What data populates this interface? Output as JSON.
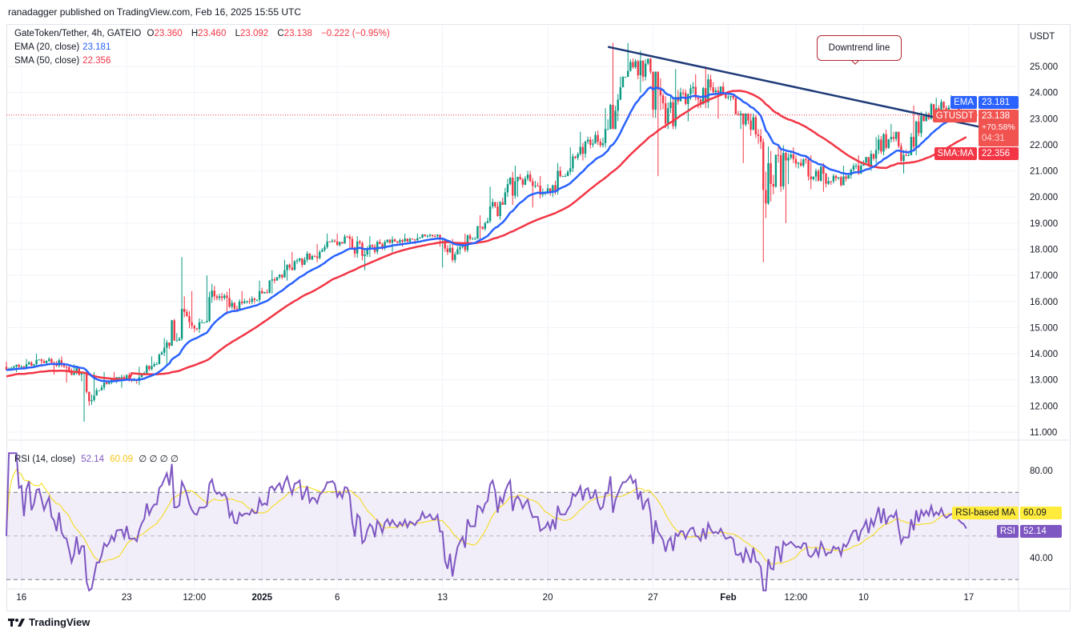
{
  "header": {
    "published": "ranadagger published on TradingView.com, Feb 16, 2025 15:55 UTC"
  },
  "legend": {
    "symbol": "GateToken/Tether, 4h, GATEIO",
    "o_label": "O",
    "o": "23.360",
    "h_label": "H",
    "h": "23.460",
    "l_label": "L",
    "l": "23.092",
    "c_label": "C",
    "c": "23.138",
    "change": "−0.222 (−0.95%)",
    "ema_label": "EMA (20, close)",
    "ema_value": "23.181",
    "sma_label": "SMA (50, close)",
    "sma_value": "22.356",
    "rsi_label": "RSI (14, close)",
    "rsi_value": "52.14",
    "rsi_ma_value": "60.09",
    "rsi_extra": "∅ ∅ ∅ ∅"
  },
  "price_axis": {
    "currency": "USDT",
    "ticks": [
      "25.000",
      "24.000",
      "23.000",
      "22.000",
      "21.000",
      "20.000",
      "19.000",
      "18.000",
      "17.000",
      "16.000",
      "15.000",
      "14.000",
      "13.000",
      "12.000",
      "11.000"
    ]
  },
  "rsi_axis": {
    "ticks": [
      "80.00",
      "40.00"
    ]
  },
  "time_axis": {
    "ticks": [
      {
        "label": "16",
        "date": "2024-12-16"
      },
      {
        "label": "23",
        "date": "2024-12-23"
      },
      {
        "label": "12:00",
        "date": "2024-12-27T12:00"
      },
      {
        "label": "2025",
        "date": "2025-01-01"
      },
      {
        "label": "6",
        "date": "2025-01-06"
      },
      {
        "label": "13",
        "date": "2025-01-13"
      },
      {
        "label": "20",
        "date": "2025-01-20"
      },
      {
        "label": "27",
        "date": "2025-01-27"
      },
      {
        "label": "Feb",
        "date": "2025-02-01"
      },
      {
        "label": "12:00",
        "date": "2025-02-05T12:00"
      },
      {
        "label": "10",
        "date": "2025-02-10"
      },
      {
        "label": "17",
        "date": "2025-02-17"
      }
    ]
  },
  "tags": {
    "ema_name": "EMA",
    "ema_value": "23.181",
    "symbol_name": "GTUSDT",
    "last_price": "23.138",
    "pct": "+70.58%",
    "countdown": "04:31",
    "sma_name": "SMA:MA",
    "sma_value": "22.356",
    "rsi_ma_name": "RSI-based MA",
    "rsi_ma_value": "60.09",
    "rsi_name": "RSI",
    "rsi_value": "52.14"
  },
  "annotation": {
    "text": "Downtrend line"
  },
  "footer": {
    "brand": "TradingView"
  },
  "colors": {
    "up": "#089981",
    "down": "#f23645",
    "ema": "#2962ff",
    "sma": "#f23645",
    "trend": "#1e3a78",
    "rsi": "#7e57c2",
    "rsi_ma": "#f5d90a",
    "rsi_band": "#7e57c2"
  },
  "chart_data": {
    "type": "candlestick",
    "interval": "4h",
    "symbol": "GTUSDT",
    "ylim": [
      10.6,
      26.2
    ],
    "rsi_ylim": [
      20,
      90
    ],
    "rsi_levels": [
      70,
      50,
      30
    ],
    "start_date": "2024-12-15",
    "daily": [
      {
        "d": "2024-12-15",
        "c": 13.5,
        "h": 13.7,
        "l": 13.3
      },
      {
        "d": "2024-12-16",
        "c": 13.6,
        "h": 13.8,
        "l": 13.4
      },
      {
        "d": "2024-12-17",
        "c": 13.8,
        "h": 14.0,
        "l": 13.5
      },
      {
        "d": "2024-12-18",
        "c": 13.5,
        "h": 13.9,
        "l": 13.2
      },
      {
        "d": "2024-12-19",
        "c": 13.2,
        "h": 13.6,
        "l": 12.9
      },
      {
        "d": "2024-12-20",
        "c": 12.4,
        "h": 13.3,
        "l": 11.4
      },
      {
        "d": "2024-12-21",
        "c": 12.9,
        "h": 13.3,
        "l": 12.6
      },
      {
        "d": "2024-12-22",
        "c": 13.0,
        "h": 13.3,
        "l": 12.7
      },
      {
        "d": "2024-12-23",
        "c": 13.1,
        "h": 13.5,
        "l": 12.8
      },
      {
        "d": "2024-12-24",
        "c": 13.6,
        "h": 13.9,
        "l": 13.2
      },
      {
        "d": "2024-12-25",
        "c": 14.3,
        "h": 14.6,
        "l": 13.6
      },
      {
        "d": "2024-12-26",
        "c": 15.6,
        "h": 17.7,
        "l": 14.5
      },
      {
        "d": "2024-12-27",
        "c": 15.2,
        "h": 16.4,
        "l": 14.8
      },
      {
        "d": "2024-12-28",
        "c": 16.2,
        "h": 17.0,
        "l": 15.2
      },
      {
        "d": "2024-12-29",
        "c": 15.8,
        "h": 16.5,
        "l": 15.5
      },
      {
        "d": "2024-12-30",
        "c": 16.0,
        "h": 16.4,
        "l": 15.6
      },
      {
        "d": "2024-12-31",
        "c": 16.4,
        "h": 16.8,
        "l": 15.9
      },
      {
        "d": "2025-01-01",
        "c": 16.8,
        "h": 17.2,
        "l": 16.3
      },
      {
        "d": "2025-01-02",
        "c": 17.3,
        "h": 17.6,
        "l": 16.8
      },
      {
        "d": "2025-01-03",
        "c": 17.6,
        "h": 17.9,
        "l": 17.2
      },
      {
        "d": "2025-01-04",
        "c": 17.9,
        "h": 18.2,
        "l": 17.5
      },
      {
        "d": "2025-01-05",
        "c": 18.3,
        "h": 18.6,
        "l": 17.9
      },
      {
        "d": "2025-01-06",
        "c": 18.4,
        "h": 18.6,
        "l": 18.0
      },
      {
        "d": "2025-01-07",
        "c": 17.8,
        "h": 18.5,
        "l": 17.2
      },
      {
        "d": "2025-01-08",
        "c": 18.2,
        "h": 18.5,
        "l": 17.7
      },
      {
        "d": "2025-01-09",
        "c": 18.3,
        "h": 18.5,
        "l": 17.9
      },
      {
        "d": "2025-01-10",
        "c": 18.4,
        "h": 18.6,
        "l": 18.1
      },
      {
        "d": "2025-01-11",
        "c": 18.5,
        "h": 18.6,
        "l": 18.2
      },
      {
        "d": "2025-01-12",
        "c": 18.4,
        "h": 18.6,
        "l": 18.1
      },
      {
        "d": "2025-01-13",
        "c": 17.8,
        "h": 18.4,
        "l": 17.3
      },
      {
        "d": "2025-01-14",
        "c": 18.4,
        "h": 18.6,
        "l": 17.8
      },
      {
        "d": "2025-01-15",
        "c": 19.0,
        "h": 19.3,
        "l": 18.4
      },
      {
        "d": "2025-01-16",
        "c": 19.8,
        "h": 20.4,
        "l": 19.0
      },
      {
        "d": "2025-01-17",
        "c": 20.6,
        "h": 21.2,
        "l": 19.7
      },
      {
        "d": "2025-01-18",
        "c": 20.6,
        "h": 21.0,
        "l": 20.0
      },
      {
        "d": "2025-01-19",
        "c": 20.2,
        "h": 20.8,
        "l": 19.6
      },
      {
        "d": "2025-01-20",
        "c": 20.8,
        "h": 21.3,
        "l": 20.0
      },
      {
        "d": "2025-01-21",
        "c": 21.5,
        "h": 21.9,
        "l": 20.8
      },
      {
        "d": "2025-01-22",
        "c": 22.0,
        "h": 22.5,
        "l": 21.4
      },
      {
        "d": "2025-01-23",
        "c": 22.6,
        "h": 23.4,
        "l": 21.9
      },
      {
        "d": "2025-01-24",
        "c": 24.2,
        "h": 25.9,
        "l": 22.6
      },
      {
        "d": "2025-01-25",
        "c": 25.2,
        "h": 25.9,
        "l": 24.6
      },
      {
        "d": "2025-01-26",
        "c": 24.8,
        "h": 25.6,
        "l": 24.0
      },
      {
        "d": "2025-01-27",
        "c": 22.8,
        "h": 24.8,
        "l": 20.8
      },
      {
        "d": "2025-01-28",
        "c": 24.0,
        "h": 24.9,
        "l": 22.6
      },
      {
        "d": "2025-01-29",
        "c": 23.8,
        "h": 24.7,
        "l": 22.9
      },
      {
        "d": "2025-01-30",
        "c": 24.2,
        "h": 25.0,
        "l": 23.4
      },
      {
        "d": "2025-01-31",
        "c": 23.8,
        "h": 24.4,
        "l": 23.0
      },
      {
        "d": "2025-02-01",
        "c": 23.2,
        "h": 23.9,
        "l": 22.6
      },
      {
        "d": "2025-02-02",
        "c": 22.4,
        "h": 23.2,
        "l": 21.3
      },
      {
        "d": "2025-02-03",
        "c": 20.5,
        "h": 22.6,
        "l": 17.5
      },
      {
        "d": "2025-02-04",
        "c": 21.4,
        "h": 22.0,
        "l": 19.0
      },
      {
        "d": "2025-02-05",
        "c": 21.2,
        "h": 21.9,
        "l": 20.5
      },
      {
        "d": "2025-02-06",
        "c": 21.0,
        "h": 21.6,
        "l": 20.3
      },
      {
        "d": "2025-02-07",
        "c": 20.6,
        "h": 21.3,
        "l": 20.2
      },
      {
        "d": "2025-02-08",
        "c": 20.7,
        "h": 21.2,
        "l": 20.4
      },
      {
        "d": "2025-02-09",
        "c": 21.2,
        "h": 21.6,
        "l": 20.7
      },
      {
        "d": "2025-02-10",
        "c": 21.8,
        "h": 22.3,
        "l": 21.0
      },
      {
        "d": "2025-02-11",
        "c": 22.3,
        "h": 22.8,
        "l": 21.6
      },
      {
        "d": "2025-02-12",
        "c": 21.6,
        "h": 22.5,
        "l": 20.9
      },
      {
        "d": "2025-02-13",
        "c": 23.1,
        "h": 23.5,
        "l": 21.6
      },
      {
        "d": "2025-02-14",
        "c": 23.4,
        "h": 23.8,
        "l": 22.9
      },
      {
        "d": "2025-02-15",
        "c": 23.5,
        "h": 23.9,
        "l": 23.1
      },
      {
        "d": "2025-02-16",
        "c": 23.138,
        "h": 23.46,
        "l": 23.092
      }
    ],
    "trendline": {
      "from": {
        "date": "2025-01-24",
        "price": 25.75
      },
      "to": {
        "date": "2025-02-18",
        "price": 22.65
      }
    },
    "last": {
      "price": 23.138,
      "ema20": 23.181,
      "sma50": 22.356,
      "rsi": 52.14,
      "rsi_ma": 60.09
    }
  }
}
